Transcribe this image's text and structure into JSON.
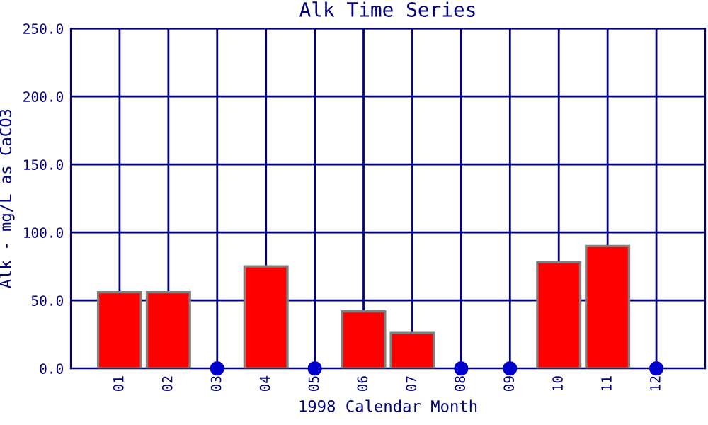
{
  "chart_data": {
    "type": "bar",
    "title": "Alk Time Series",
    "xlabel": "1998 Calendar Month",
    "ylabel": "Alk - mg/L as CaCO3",
    "categories": [
      "01",
      "02",
      "03",
      "04",
      "05",
      "06",
      "07",
      "08",
      "09",
      "10",
      "11",
      "12"
    ],
    "series": [
      {
        "color": "#ff0000",
        "values": [
          56,
          56,
          null,
          75,
          null,
          42,
          26,
          null,
          null,
          78,
          90,
          null
        ]
      },
      {
        "type": "scatter",
        "color": "#0000cc",
        "x": [
          "03",
          "05",
          "08",
          "09",
          "12"
        ],
        "values": [
          0,
          0,
          0,
          0,
          0
        ]
      }
    ],
    "ylim": [
      0,
      250
    ],
    "yticks": [
      {
        "value": 0,
        "label": "0.0"
      },
      {
        "value": 50,
        "label": "50.0"
      },
      {
        "value": 100,
        "label": "100.0"
      },
      {
        "value": 150,
        "label": "150.0"
      },
      {
        "value": 200,
        "label": "200.0"
      },
      {
        "value": 250,
        "label": "250.0"
      }
    ],
    "grid": true,
    "marker": "circle"
  }
}
